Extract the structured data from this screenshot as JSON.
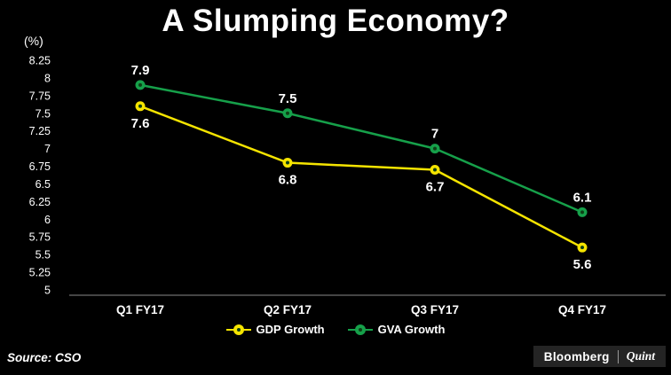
{
  "chart_data": {
    "type": "line",
    "title": "A Slumping Economy?",
    "ylabel": "(%)",
    "xlabel": "",
    "categories": [
      "Q1 FY17",
      "Q2 FY17",
      "Q3 FY17",
      "Q4 FY17"
    ],
    "series": [
      {
        "name": "GDP Growth",
        "color": "#f5e400",
        "values": [
          7.6,
          6.8,
          6.7,
          5.6
        ],
        "labels": [
          "7.6",
          "6.8",
          "6.7",
          "5.6"
        ],
        "label_position": "below"
      },
      {
        "name": "GVA Growth",
        "color": "#16a04a",
        "values": [
          7.9,
          7.5,
          7.0,
          6.1
        ],
        "labels": [
          "7.9",
          "7.5",
          "7",
          "6.1"
        ],
        "label_position": "above"
      }
    ],
    "ylim": [
      5,
      8.25
    ],
    "ytick_labels": [
      "8.25",
      "8",
      "7.75",
      "7.5",
      "7.25",
      "7",
      "6.75",
      "6.5",
      "6.25",
      "6",
      "5.75",
      "5.5",
      "5.25",
      "5"
    ],
    "grid": false,
    "legend_position": "bottom"
  },
  "colors": {
    "background": "#000000",
    "text": "#ffffff",
    "axis": "#8a8a8a",
    "marker_center": "#0d3f16"
  },
  "source": "Source: CSO",
  "branding": {
    "bloomberg": "Bloomberg",
    "quint": "Quint"
  }
}
